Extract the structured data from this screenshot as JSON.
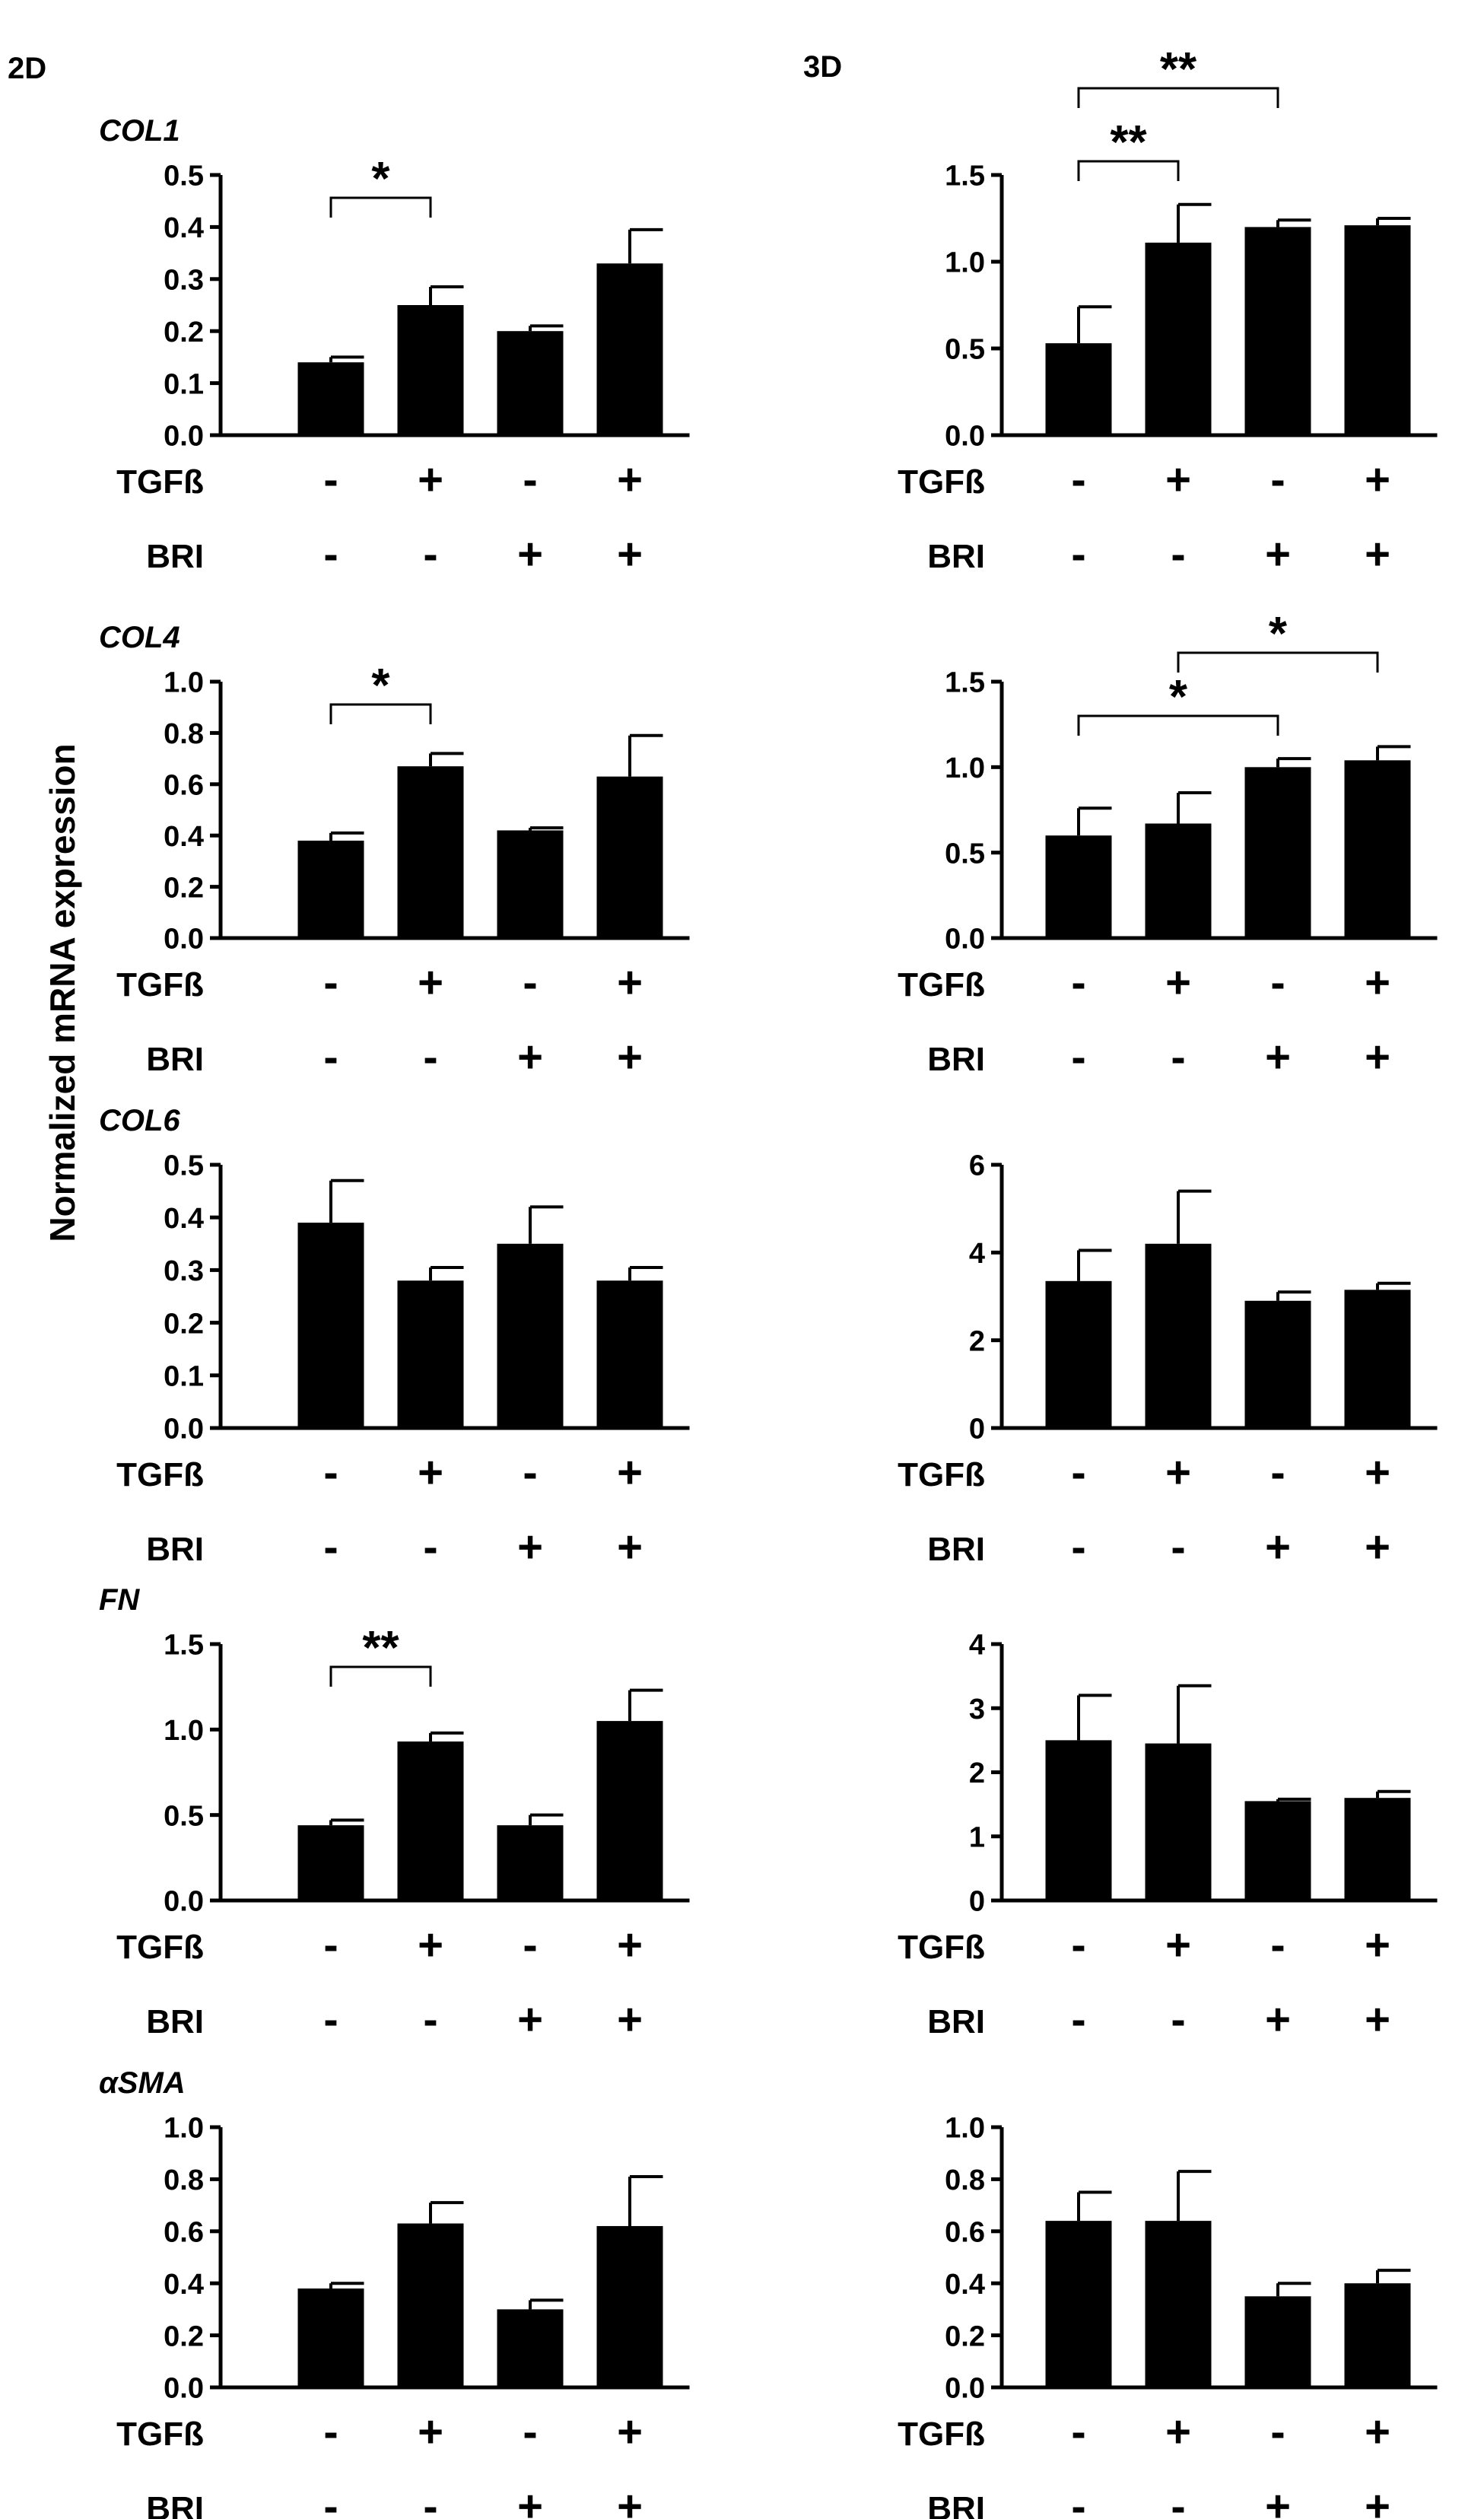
{
  "figure": {
    "column_labels": [
      "2D",
      "3D"
    ],
    "shared_ylabel": "Normalized mRNA expression",
    "row_labels": [
      "TGFß",
      "BRI"
    ]
  },
  "chart_data": [
    {
      "id": "col1-2d",
      "type": "bar",
      "gene": "COL1",
      "panel": "2D",
      "categories": [
        "-/-",
        "+/-",
        "-/+",
        "+/+"
      ],
      "conditions": {
        "TGFß": [
          "-",
          "+",
          "-",
          "+"
        ],
        "BRI": [
          "-",
          "-",
          "+",
          "+"
        ]
      },
      "values": [
        0.14,
        0.25,
        0.2,
        0.33
      ],
      "errors": [
        0.01,
        0.035,
        0.01,
        0.065
      ],
      "ylim": [
        0,
        0.5
      ],
      "yticks": [
        "0.0",
        "0.1",
        "0.2",
        "0.3",
        "0.4",
        "0.5"
      ],
      "significance": [
        {
          "from": 0,
          "to": 1,
          "label": "*"
        }
      ]
    },
    {
      "id": "col1-3d",
      "type": "bar",
      "gene": "",
      "panel": "3D",
      "categories": [
        "-/-",
        "+/-",
        "-/+",
        "+/+"
      ],
      "conditions": {
        "TGFß": [
          "-",
          "+",
          "-",
          "+"
        ],
        "BRI": [
          "-",
          "-",
          "+",
          "+"
        ]
      },
      "values": [
        0.53,
        1.11,
        1.2,
        1.21
      ],
      "errors": [
        0.21,
        0.22,
        0.04,
        0.04
      ],
      "ylim": [
        0,
        1.5
      ],
      "yticks": [
        "0.0",
        "0.5",
        "1.0",
        "1.5"
      ],
      "significance": [
        {
          "from": 0,
          "to": 1,
          "label": "**"
        },
        {
          "from": 0,
          "to": 2,
          "label": "**"
        }
      ]
    },
    {
      "id": "col4-2d",
      "type": "bar",
      "gene": "COL4",
      "panel": "2D",
      "categories": [
        "-/-",
        "+/-",
        "-/+",
        "+/+"
      ],
      "conditions": {
        "TGFß": [
          "-",
          "+",
          "-",
          "+"
        ],
        "BRI": [
          "-",
          "-",
          "+",
          "+"
        ]
      },
      "values": [
        0.38,
        0.67,
        0.42,
        0.63
      ],
      "errors": [
        0.03,
        0.05,
        0.01,
        0.16
      ],
      "ylim": [
        0,
        1.0
      ],
      "yticks": [
        "0.0",
        "0.2",
        "0.4",
        "0.6",
        "0.8",
        "1.0"
      ],
      "significance": [
        {
          "from": 0,
          "to": 1,
          "label": "*"
        }
      ]
    },
    {
      "id": "col4-3d",
      "type": "bar",
      "gene": "",
      "panel": "3D",
      "categories": [
        "-/-",
        "+/-",
        "-/+",
        "+/+"
      ],
      "conditions": {
        "TGFß": [
          "-",
          "+",
          "-",
          "+"
        ],
        "BRI": [
          "-",
          "-",
          "+",
          "+"
        ]
      },
      "values": [
        0.6,
        0.67,
        1.0,
        1.04
      ],
      "errors": [
        0.16,
        0.18,
        0.05,
        0.08
      ],
      "ylim": [
        0,
        1.5
      ],
      "yticks": [
        "0.0",
        "0.5",
        "1.0",
        "1.5"
      ],
      "significance": [
        {
          "from": 0,
          "to": 2,
          "label": "*"
        },
        {
          "from": 1,
          "to": 3,
          "label": "*"
        }
      ]
    },
    {
      "id": "col6-2d",
      "type": "bar",
      "gene": "COL6",
      "panel": "2D",
      "categories": [
        "-/-",
        "+/-",
        "-/+",
        "+/+"
      ],
      "conditions": {
        "TGFß": [
          "-",
          "+",
          "-",
          "+"
        ],
        "BRI": [
          "-",
          "-",
          "+",
          "+"
        ]
      },
      "values": [
        0.39,
        0.28,
        0.35,
        0.28
      ],
      "errors": [
        0.08,
        0.025,
        0.07,
        0.025
      ],
      "ylim": [
        0,
        0.5
      ],
      "yticks": [
        "0.0",
        "0.1",
        "0.2",
        "0.3",
        "0.4",
        "0.5"
      ],
      "significance": []
    },
    {
      "id": "col6-3d",
      "type": "bar",
      "gene": "",
      "panel": "3D",
      "categories": [
        "-/-",
        "+/-",
        "-/+",
        "+/+"
      ],
      "conditions": {
        "TGFß": [
          "-",
          "+",
          "-",
          "+"
        ],
        "BRI": [
          "-",
          "-",
          "+",
          "+"
        ]
      },
      "values": [
        3.35,
        4.2,
        2.9,
        3.15
      ],
      "errors": [
        0.7,
        1.2,
        0.2,
        0.15
      ],
      "ylim": [
        0,
        6
      ],
      "yticks": [
        "0",
        "2",
        "4",
        "6"
      ],
      "significance": []
    },
    {
      "id": "fn-2d",
      "type": "bar",
      "gene": "FN",
      "panel": "2D",
      "categories": [
        "-/-",
        "+/-",
        "-/+",
        "+/+"
      ],
      "conditions": {
        "TGFß": [
          "-",
          "+",
          "-",
          "+"
        ],
        "BRI": [
          "-",
          "-",
          "+",
          "+"
        ]
      },
      "values": [
        0.44,
        0.93,
        0.44,
        1.05
      ],
      "errors": [
        0.03,
        0.05,
        0.06,
        0.18
      ],
      "ylim": [
        0,
        1.5
      ],
      "yticks": [
        "0.0",
        "0.5",
        "1.0",
        "1.5"
      ],
      "significance": [
        {
          "from": 0,
          "to": 1,
          "label": "**"
        }
      ]
    },
    {
      "id": "fn-3d",
      "type": "bar",
      "gene": "",
      "panel": "3D",
      "categories": [
        "-/-",
        "+/-",
        "-/+",
        "+/+"
      ],
      "conditions": {
        "TGFß": [
          "-",
          "+",
          "-",
          "+"
        ],
        "BRI": [
          "-",
          "-",
          "+",
          "+"
        ]
      },
      "values": [
        2.5,
        2.45,
        1.55,
        1.6
      ],
      "errors": [
        0.7,
        0.9,
        0.03,
        0.1
      ],
      "ylim": [
        0,
        4
      ],
      "yticks": [
        "0",
        "1",
        "2",
        "3",
        "4"
      ],
      "significance": []
    },
    {
      "id": "asma-2d",
      "type": "bar",
      "gene": "αSMA",
      "panel": "2D",
      "categories": [
        "-/-",
        "+/-",
        "-/+",
        "+/+"
      ],
      "conditions": {
        "TGFß": [
          "-",
          "+",
          "-",
          "+"
        ],
        "BRI": [
          "-",
          "-",
          "+",
          "+"
        ]
      },
      "values": [
        0.38,
        0.63,
        0.3,
        0.62
      ],
      "errors": [
        0.02,
        0.08,
        0.035,
        0.19
      ],
      "ylim": [
        0,
        1.0
      ],
      "yticks": [
        "0.0",
        "0.2",
        "0.4",
        "0.6",
        "0.8",
        "1.0"
      ],
      "significance": []
    },
    {
      "id": "asma-3d",
      "type": "bar",
      "gene": "",
      "panel": "3D",
      "categories": [
        "-/-",
        "+/-",
        "-/+",
        "+/+"
      ],
      "conditions": {
        "TGFß": [
          "-",
          "+",
          "-",
          "+"
        ],
        "BRI": [
          "-",
          "-",
          "+",
          "+"
        ]
      },
      "values": [
        0.64,
        0.64,
        0.35,
        0.4
      ],
      "errors": [
        0.11,
        0.19,
        0.05,
        0.05
      ],
      "ylim": [
        0,
        1.0
      ],
      "yticks": [
        "0.0",
        "0.2",
        "0.4",
        "0.6",
        "0.8",
        "1.0"
      ],
      "significance": []
    }
  ]
}
